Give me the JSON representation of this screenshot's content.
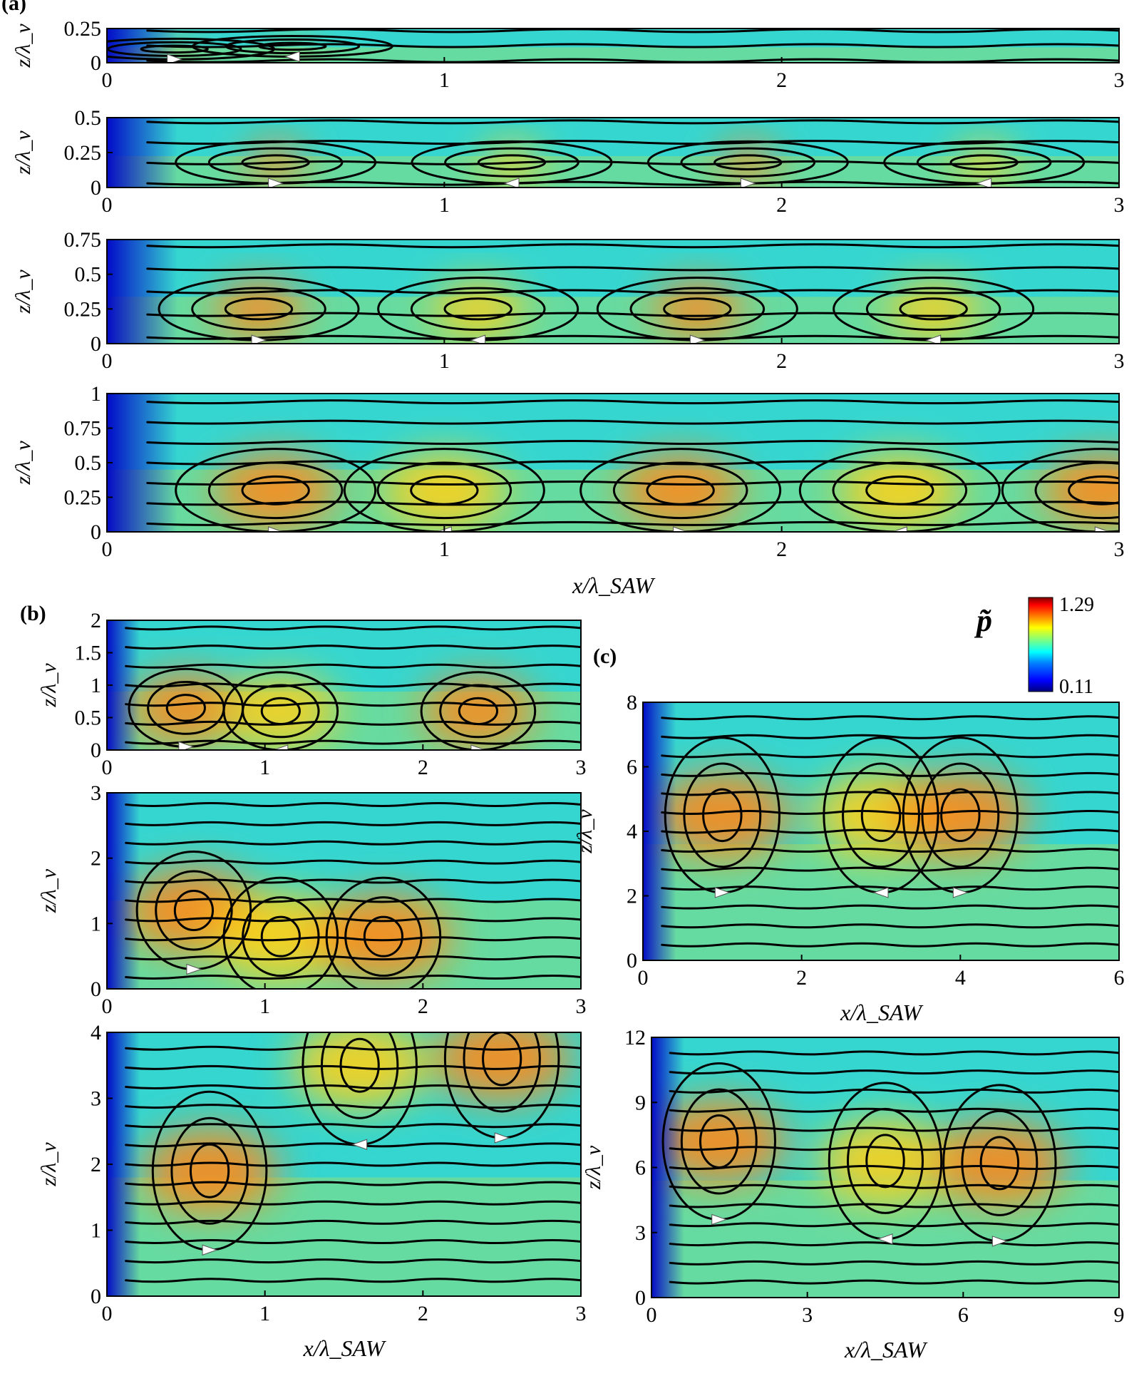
{
  "figure": {
    "colorbar": {
      "symbol": "p̃",
      "max_label": "1.29",
      "min_label": "0.11",
      "colors": [
        "#00007f",
        "#0000ff",
        "#007fff",
        "#00ffff",
        "#7fff7f",
        "#ffff00",
        "#ff7f00",
        "#ff0000",
        "#7f0000"
      ]
    }
  },
  "chart_data": [
    {
      "type": "heatmap",
      "panel_label": "(a)",
      "xlabel": "",
      "ylabel": "z/λ_v",
      "xlim": [
        0,
        3
      ],
      "ylim": [
        0,
        0.25
      ],
      "x_ticks": [
        "0",
        "1",
        "2",
        "3"
      ],
      "y_ticks": [
        "0",
        "0.25"
      ],
      "vortex_centers": [
        [
          0.2,
          0.1
        ],
        [
          0.55,
          0.12
        ]
      ],
      "vortex_labels": []
    },
    {
      "type": "heatmap",
      "panel_label": "",
      "xlabel": "",
      "ylabel": "z/λ_v",
      "xlim": [
        0,
        3
      ],
      "ylim": [
        0,
        0.5
      ],
      "x_ticks": [
        "0",
        "1",
        "2",
        "3"
      ],
      "y_ticks": [
        "0",
        "0.25",
        "0.5"
      ],
      "vortex_centers": [
        [
          0.5,
          0.18
        ],
        [
          1.2,
          0.18
        ],
        [
          1.9,
          0.18
        ],
        [
          2.6,
          0.18
        ]
      ]
    },
    {
      "type": "heatmap",
      "panel_label": "",
      "xlabel": "",
      "ylabel": "z/λ_v",
      "xlim": [
        0,
        3
      ],
      "ylim": [
        0,
        0.75
      ],
      "x_ticks": [
        "0",
        "1",
        "2",
        "3"
      ],
      "y_ticks": [
        "0",
        "0.25",
        "0.5",
        "0.75"
      ],
      "vortex_centers": [
        [
          0.45,
          0.25
        ],
        [
          1.1,
          0.25
        ],
        [
          1.75,
          0.25
        ],
        [
          2.45,
          0.25
        ]
      ]
    },
    {
      "type": "heatmap",
      "panel_label": "",
      "xlabel": "x/λ_SAW",
      "ylabel": "z/λ_v",
      "xlim": [
        0,
        3
      ],
      "ylim": [
        0,
        1
      ],
      "x_ticks": [
        "0",
        "1",
        "2",
        "3"
      ],
      "y_ticks": [
        "0",
        "0.25",
        "0.5",
        "0.75",
        "1"
      ],
      "vortex_centers": [
        [
          0.5,
          0.3
        ],
        [
          1.0,
          0.3
        ],
        [
          1.7,
          0.3
        ],
        [
          2.35,
          0.3
        ],
        [
          2.95,
          0.3
        ]
      ]
    },
    {
      "type": "heatmap",
      "panel_label": "(b)",
      "xlabel": "",
      "ylabel": "z/λ_v",
      "xlim": [
        0,
        3
      ],
      "ylim": [
        0,
        2
      ],
      "x_ticks": [
        "0",
        "1",
        "2",
        "3"
      ],
      "y_ticks": [
        "0",
        "0.5",
        "1",
        "1.5",
        "2"
      ],
      "vortex_centers": [
        [
          0.5,
          0.65
        ],
        [
          1.1,
          0.6
        ],
        [
          2.35,
          0.6
        ]
      ]
    },
    {
      "type": "heatmap",
      "panel_label": "",
      "xlabel": "",
      "ylabel": "z/λ_v",
      "xlim": [
        0,
        3
      ],
      "ylim": [
        0,
        3
      ],
      "x_ticks": [
        "0",
        "1",
        "2",
        "3"
      ],
      "y_ticks": [
        "0",
        "1",
        "2",
        "3"
      ],
      "vortex_centers": [
        [
          0.55,
          1.2
        ],
        [
          1.1,
          0.8
        ],
        [
          1.75,
          0.8
        ]
      ]
    },
    {
      "type": "heatmap",
      "panel_label": "",
      "xlabel": "x/λ_SAW",
      "ylabel": "z/λ_v",
      "xlim": [
        0,
        3
      ],
      "ylim": [
        0,
        4
      ],
      "x_ticks": [
        "0",
        "1",
        "2",
        "3"
      ],
      "y_ticks": [
        "0",
        "1",
        "2",
        "3",
        "4"
      ],
      "vortex_centers": [
        [
          0.65,
          1.9
        ],
        [
          1.6,
          3.5
        ],
        [
          2.5,
          3.6
        ]
      ]
    },
    {
      "type": "heatmap",
      "panel_label": "(c)",
      "xlabel": "x/λ_SAW",
      "ylabel": "z/λ_v",
      "xlim": [
        0,
        6
      ],
      "ylim": [
        0,
        8
      ],
      "x_ticks": [
        "0",
        "2",
        "4",
        "6"
      ],
      "y_ticks": [
        "0",
        "2",
        "4",
        "6",
        "8"
      ],
      "vortex_centers": [
        [
          1.0,
          4.5
        ],
        [
          3.0,
          4.5
        ],
        [
          4.0,
          4.5
        ]
      ]
    },
    {
      "type": "heatmap",
      "panel_label": "",
      "xlabel": "x/λ_SAW",
      "ylabel": "z/λ_v",
      "xlim": [
        0,
        9
      ],
      "ylim": [
        0,
        12
      ],
      "x_ticks": [
        "0",
        "3",
        "6",
        "9"
      ],
      "y_ticks": [
        "0",
        "3",
        "6",
        "9",
        "12"
      ],
      "vortex_centers": [
        [
          1.3,
          7.2
        ],
        [
          4.5,
          6.3
        ],
        [
          6.7,
          6.2
        ]
      ]
    }
  ]
}
